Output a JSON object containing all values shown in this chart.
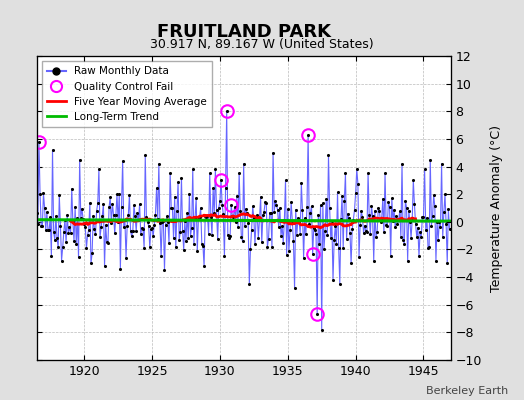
{
  "title": "FRUITLAND PARK",
  "subtitle": "30.917 N, 89.167 W (United States)",
  "ylabel": "Temperature Anomaly (°C)",
  "watermark": "Berkeley Earth",
  "xlim": [
    1916.5,
    1947.0
  ],
  "ylim": [
    -10,
    12
  ],
  "yticks": [
    -10,
    -8,
    -6,
    -4,
    -2,
    0,
    2,
    4,
    6,
    8,
    10,
    12
  ],
  "xticks": [
    1920,
    1925,
    1930,
    1935,
    1940,
    1945
  ],
  "bg_color": "#e0e0e0",
  "plot_bg_color": "#ffffff",
  "raw_line_color": "#6666ff",
  "raw_dot_color": "#000000",
  "qc_fail_color": "#ff00ff",
  "moving_avg_color": "#ff0000",
  "trend_color": "#00bb00",
  "seed": 42,
  "n_months": 366,
  "start_year": 1916.5
}
